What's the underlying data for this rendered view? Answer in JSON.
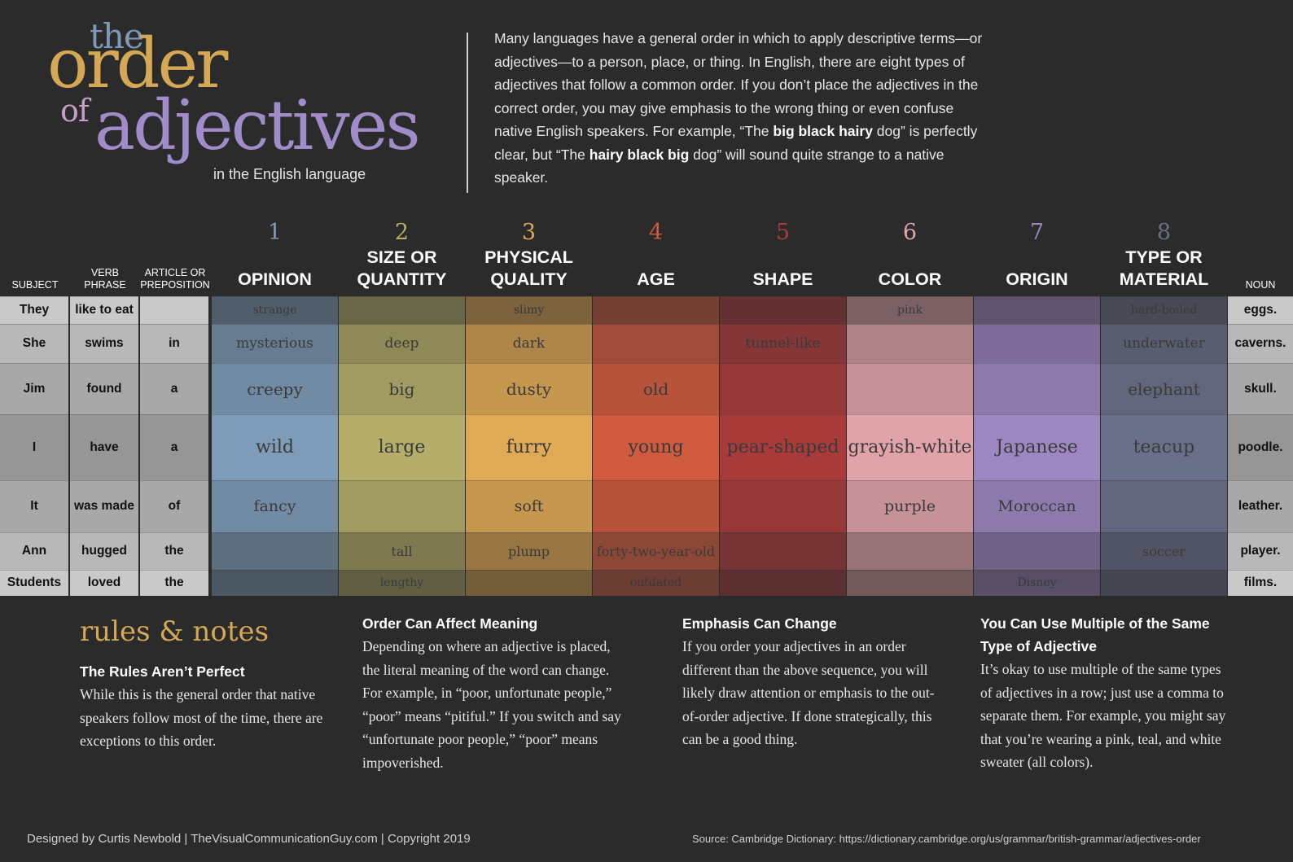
{
  "title": {
    "the": "the",
    "order": "order",
    "of": "of",
    "adjectives": "adjectives",
    "subtitle": "in the English language"
  },
  "intro": {
    "p1": "Many languages have a general order in which to apply descriptive terms—or adjectives—to a person, place, or thing.  In English, there are eight types of adjectives that follow a common order. If you don’t place the adjectives in the correct order, you may give emphasis to the wrong thing or even confuse native English speakers. For example, “The ",
    "b1": "big black hairy",
    "p2": " dog” is perfectly clear, but “The ",
    "b2": "hairy black big",
    "p3": " dog” will sound quite strange to a native speaker."
  },
  "left_headers": [
    "SUBJECT",
    "VERB PHRASE",
    "ARTICLE OR PREPOSITION"
  ],
  "noun_header": "NOUN",
  "columns": [
    {
      "num": "1",
      "name": "OPINION",
      "color": "#7e9bb8"
    },
    {
      "num": "2",
      "name": "SIZE OR QUANTITY",
      "color": "#b5ad6a"
    },
    {
      "num": "3",
      "name": "PHYSICAL QUALITY",
      "color": "#e0a955"
    },
    {
      "num": "4",
      "name": "AGE",
      "color": "#cf5a3e"
    },
    {
      "num": "5",
      "name": "SHAPE",
      "color": "#a83a3a"
    },
    {
      "num": "6",
      "name": "COLOR",
      "color": "#e0a3aa"
    },
    {
      "num": "7",
      "name": "ORIGIN",
      "color": "#9d87c2"
    },
    {
      "num": "8",
      "name": "TYPE OR MATERIAL",
      "color": "#6a708a"
    }
  ],
  "rows": [
    {
      "subject": "They",
      "verb": "like to eat",
      "article": "",
      "adjectives": [
        "strange",
        "",
        "slimy",
        "",
        "",
        "pink",
        "",
        "hard-boiled"
      ],
      "noun": "eggs."
    },
    {
      "subject": "She",
      "verb": "swims",
      "article": "in",
      "adjectives": [
        "mysterious",
        "deep",
        "dark",
        "",
        "tunnel-like",
        "",
        "",
        "underwater"
      ],
      "noun": "caverns."
    },
    {
      "subject": "Jim",
      "verb": "found",
      "article": "a",
      "adjectives": [
        "creepy",
        "big",
        "dusty",
        "old",
        "",
        "",
        "",
        "elephant"
      ],
      "noun": "skull."
    },
    {
      "subject": "I",
      "verb": "have",
      "article": "a",
      "adjectives": [
        "wild",
        "large",
        "furry",
        "young",
        "pear-shaped",
        "grayish-white",
        "Japanese",
        "teacup"
      ],
      "noun": "poodle."
    },
    {
      "subject": "It",
      "verb": "was made",
      "article": "of",
      "adjectives": [
        "fancy",
        "",
        "soft",
        "",
        "",
        "purple",
        "Moroccan",
        ""
      ],
      "noun": "leather."
    },
    {
      "subject": "Ann",
      "verb": "hugged",
      "article": "the",
      "adjectives": [
        "",
        "tall",
        "plump",
        "forty-two-year-old",
        "",
        "",
        "",
        "soccer"
      ],
      "noun": "player."
    },
    {
      "subject": "Students",
      "verb": "loved",
      "article": "the",
      "adjectives": [
        "",
        "lengthy",
        "",
        "outdated",
        "",
        "",
        "Disney",
        ""
      ],
      "noun": "films."
    }
  ],
  "notes": {
    "heading": "rules & notes",
    "items": [
      {
        "title": "The Rules Aren’t Perfect",
        "body": "While this is the general order that native speakers follow most of the time, there are exceptions to this order."
      },
      {
        "title": "Order Can Affect Meaning",
        "body": "Depending on where an adjective is placed, the literal meaning of the word can change. For example, in “poor, unfortunate people,” “poor” means “pitiful.” If you switch and say “unfortunate poor people,” “poor” means impoverished."
      },
      {
        "title": "Emphasis Can Change",
        "body": "If you order your adjectives in an order different than the above sequence, you will likely draw attention or emphasis to the out-of-order adjective. If done strategically, this can be a good thing."
      },
      {
        "title": "You Can Use Multiple of the Same Type of Adjective",
        "body": "It’s okay to use multiple of the same types of adjectives in a row; just use a comma to separate them. For example, you might say that you’re wearing a pink, teal, and white sweater (all colors)."
      }
    ]
  },
  "footer": {
    "credit": "Designed by Curtis Newbold | TheVisualCommunicationGuy.com | Copyright 2019",
    "source": "Source: Cambridge Dictionary: https://dictionary.cambridge.org/us/grammar/british-grammar/adjectives-order"
  }
}
